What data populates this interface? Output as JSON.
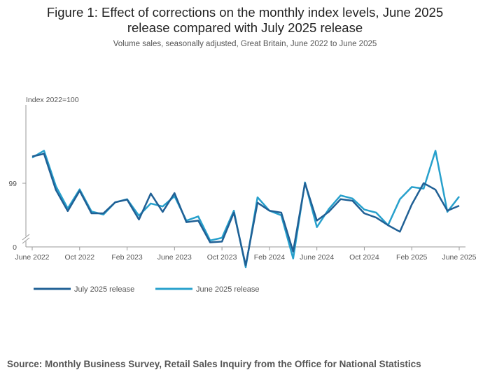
{
  "title_line1": "Figure 1: Effect of corrections on the monthly index levels, June 2025",
  "title_line2": "release compared with July 2025 release",
  "subtitle": "Volume sales, seasonally adjusted, Great Britain, June 2022 to June 2025",
  "source": "Source: Monthly Business Survey, Retail Sales Inquiry from the Office for National Statistics",
  "colors": {
    "july": "#206095",
    "june": "#27a0cc",
    "axis": "#999999"
  },
  "chart_data": {
    "type": "line",
    "ylabel": "Index 2022=100",
    "ytick_labels": [
      "0",
      "99"
    ],
    "y_axis_broken": true,
    "ylim": [
      97.4,
      101.1
    ],
    "x": [
      "Jun 2022",
      "Jul 2022",
      "Aug 2022",
      "Sep 2022",
      "Oct 2022",
      "Nov 2022",
      "Dec 2022",
      "Jan 2023",
      "Feb 2023",
      "Mar 2023",
      "Apr 2023",
      "May 2023",
      "Jun 2023",
      "Jul 2023",
      "Aug 2023",
      "Sep 2023",
      "Oct 2023",
      "Nov 2023",
      "Dec 2023",
      "Jan 2024",
      "Feb 2024",
      "Mar 2024",
      "Apr 2024",
      "May 2024",
      "Jun 2024",
      "Jul 2024",
      "Aug 2024",
      "Sep 2024",
      "Oct 2024",
      "Nov 2024",
      "Dec 2024",
      "Jan 2025",
      "Feb 2025",
      "Mar 2025",
      "Apr 2025",
      "May 2025",
      "Jun 2025"
    ],
    "xtick_labels": [
      {
        "index": 0,
        "label": "June 2022"
      },
      {
        "index": 4,
        "label": "Oct 2022"
      },
      {
        "index": 8,
        "label": "Feb 2023"
      },
      {
        "index": 12,
        "label": "June 2023"
      },
      {
        "index": 16,
        "label": "Oct 2023"
      },
      {
        "index": 20,
        "label": "Feb 2024"
      },
      {
        "index": 24,
        "label": "June 2024"
      },
      {
        "index": 28,
        "label": "Oct 2024"
      },
      {
        "index": 32,
        "label": "Feb 2025"
      },
      {
        "index": 36,
        "label": "June 2025"
      }
    ],
    "legend": "bottom-left",
    "grid": false,
    "series": [
      {
        "name": "July 2025 release",
        "color": "#206095",
        "values": [
          99.75,
          99.82,
          98.87,
          98.32,
          98.85,
          98.26,
          98.26,
          98.55,
          98.62,
          98.1,
          98.78,
          98.3,
          98.79,
          98.03,
          98.07,
          97.5,
          97.52,
          98.28,
          96.9,
          98.54,
          98.33,
          98.28,
          97.26,
          99.05,
          98.07,
          98.3,
          98.63,
          98.59,
          98.26,
          98.15,
          97.95,
          97.78,
          98.49,
          99.05,
          98.88,
          98.33,
          98.46
        ]
      },
      {
        "name": "June 2025 release",
        "color": "#27a0cc",
        "values": [
          99.72,
          99.9,
          98.97,
          98.39,
          98.89,
          98.31,
          98.23,
          98.55,
          98.63,
          98.2,
          98.52,
          98.44,
          98.71,
          98.07,
          98.18,
          97.55,
          97.62,
          98.33,
          96.85,
          98.68,
          98.33,
          98.21,
          97.08,
          99.07,
          97.9,
          98.37,
          98.73,
          98.65,
          98.36,
          98.28,
          97.95,
          98.63,
          98.95,
          98.91,
          99.9,
          98.3,
          98.7
        ]
      }
    ]
  }
}
